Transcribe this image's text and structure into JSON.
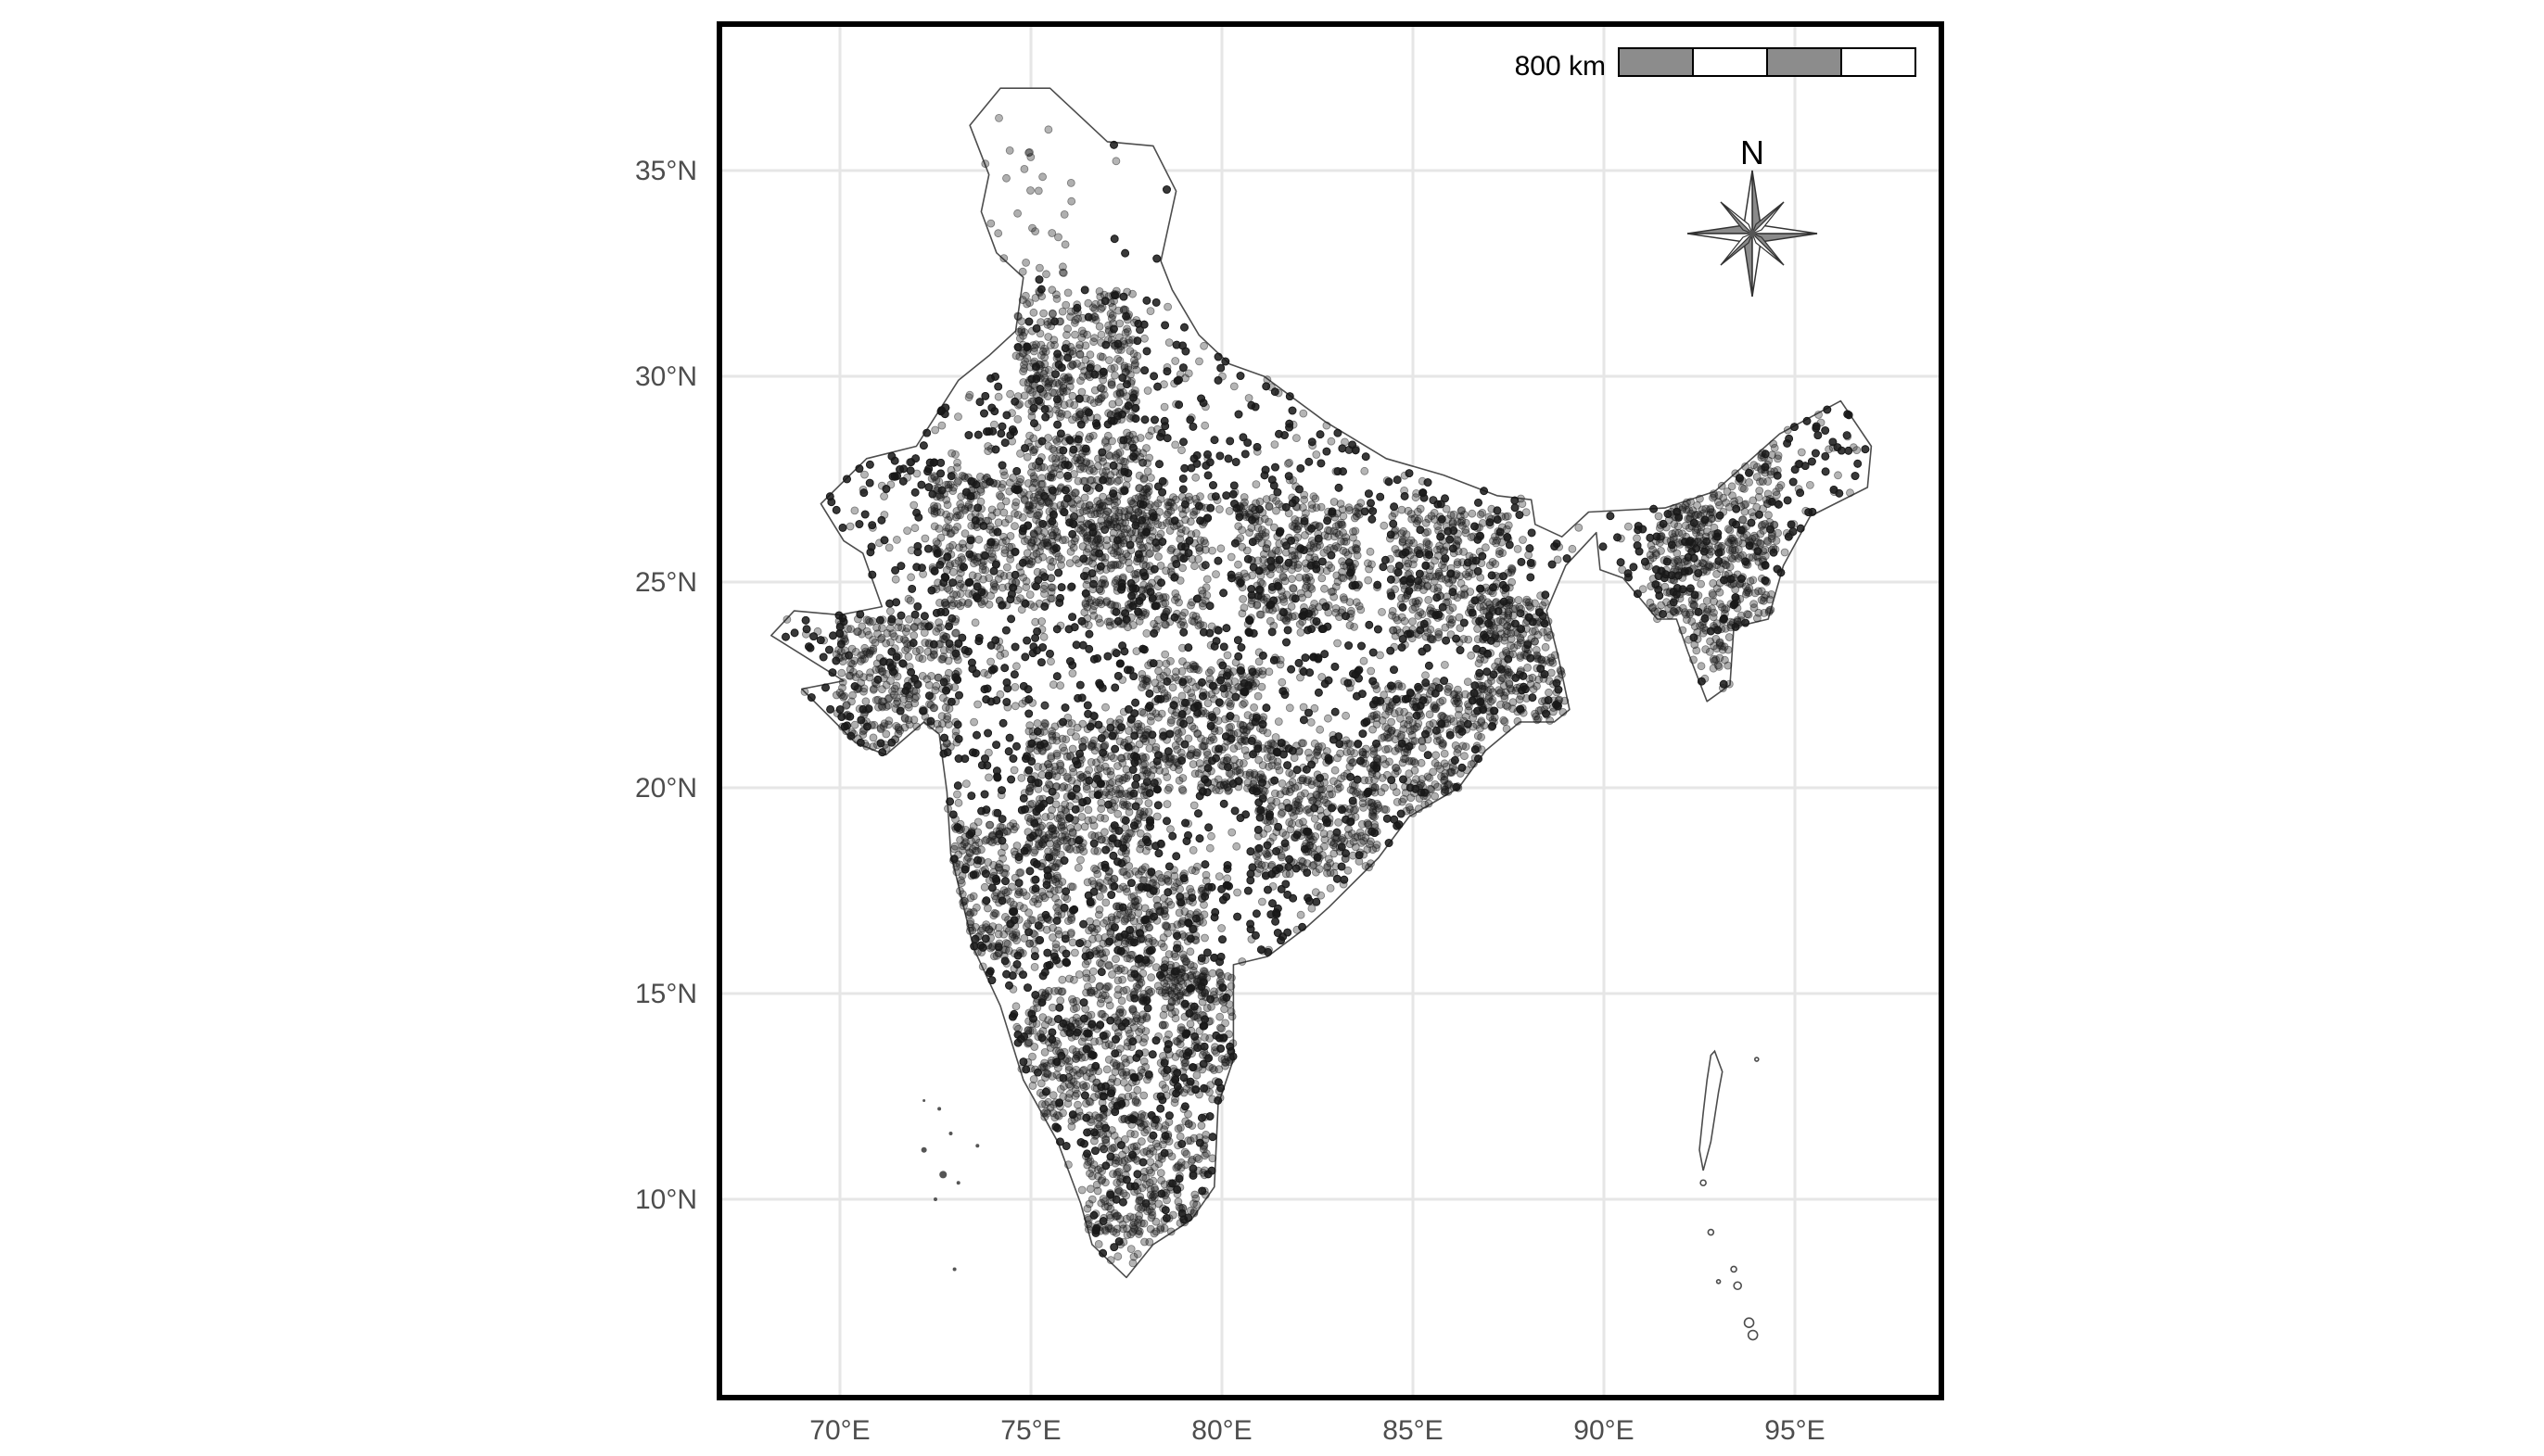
{
  "map": {
    "type": "point-distribution-map",
    "region": "India",
    "x_axis": {
      "ticks": [
        "70°E",
        "75°E",
        "80°E",
        "85°E",
        "90°E",
        "95°E"
      ],
      "tick_values": [
        70,
        75,
        80,
        85,
        90,
        95
      ],
      "range": [
        66.8,
        98.8
      ]
    },
    "y_axis": {
      "ticks": [
        "35°N",
        "30°N",
        "25°N",
        "20°N",
        "15°N",
        "10°N"
      ],
      "tick_values": [
        35,
        30,
        25,
        20,
        15,
        10
      ],
      "range": [
        5.4,
        38.6
      ]
    },
    "grid": true,
    "scale_bar": {
      "label": "800 km",
      "segments": 4,
      "colors": [
        "#8c8c8c",
        "#ffffff",
        "#8c8c8c",
        "#ffffff"
      ]
    },
    "north_arrow": {
      "label": "N"
    },
    "colors": {
      "points": "#1a1a1a",
      "outline": "#4d4d4d",
      "grid": "#e6e6e6",
      "frame": "#000000"
    },
    "outline_lonlat": [
      [
        74.2,
        37.0
      ],
      [
        75.5,
        37.0
      ],
      [
        77.0,
        35.7
      ],
      [
        78.2,
        35.6
      ],
      [
        78.8,
        34.5
      ],
      [
        78.4,
        32.8
      ],
      [
        78.7,
        32.1
      ],
      [
        79.4,
        31.0
      ],
      [
        80.2,
        30.3
      ],
      [
        81.1,
        30.0
      ],
      [
        82.7,
        28.9
      ],
      [
        84.3,
        28.0
      ],
      [
        85.8,
        27.6
      ],
      [
        87.2,
        27.1
      ],
      [
        88.1,
        27.0
      ],
      [
        88.2,
        26.4
      ],
      [
        88.9,
        26.1
      ],
      [
        89.6,
        26.7
      ],
      [
        91.6,
        26.8
      ],
      [
        92.9,
        27.2
      ],
      [
        94.6,
        28.6
      ],
      [
        96.2,
        29.4
      ],
      [
        97.0,
        28.3
      ],
      [
        96.9,
        27.3
      ],
      [
        95.4,
        26.6
      ],
      [
        94.7,
        25.4
      ],
      [
        94.3,
        24.1
      ],
      [
        93.4,
        23.9
      ],
      [
        93.3,
        22.5
      ],
      [
        92.7,
        22.1
      ],
      [
        92.2,
        23.3
      ],
      [
        91.9,
        24.1
      ],
      [
        91.4,
        24.1
      ],
      [
        90.5,
        25.1
      ],
      [
        89.9,
        25.3
      ],
      [
        89.8,
        26.2
      ],
      [
        89.0,
        25.4
      ],
      [
        88.5,
        24.3
      ],
      [
        88.8,
        23.2
      ],
      [
        89.1,
        21.9
      ],
      [
        88.7,
        21.6
      ],
      [
        87.8,
        21.6
      ],
      [
        86.9,
        20.9
      ],
      [
        86.2,
        20.0
      ],
      [
        84.9,
        19.3
      ],
      [
        84.1,
        18.3
      ],
      [
        82.8,
        17.1
      ],
      [
        82.2,
        16.6
      ],
      [
        81.2,
        15.9
      ],
      [
        80.3,
        15.7
      ],
      [
        80.3,
        13.4
      ],
      [
        79.9,
        12.3
      ],
      [
        79.8,
        10.3
      ],
      [
        79.2,
        9.5
      ],
      [
        78.2,
        8.9
      ],
      [
        77.5,
        8.1
      ],
      [
        76.6,
        8.9
      ],
      [
        76.3,
        9.9
      ],
      [
        75.7,
        11.4
      ],
      [
        74.8,
        12.9
      ],
      [
        74.2,
        14.7
      ],
      [
        73.5,
        16.1
      ],
      [
        72.9,
        18.4
      ],
      [
        72.8,
        19.9
      ],
      [
        72.6,
        21.3
      ],
      [
        72.2,
        21.6
      ],
      [
        71.2,
        20.8
      ],
      [
        70.4,
        21.1
      ],
      [
        69.0,
        22.4
      ],
      [
        70.1,
        22.6
      ],
      [
        68.2,
        23.7
      ],
      [
        68.8,
        24.3
      ],
      [
        70.0,
        24.2
      ],
      [
        71.1,
        24.4
      ],
      [
        70.6,
        25.7
      ],
      [
        70.1,
        26.0
      ],
      [
        69.5,
        26.9
      ],
      [
        70.7,
        28.0
      ],
      [
        72.0,
        28.3
      ],
      [
        73.1,
        29.9
      ],
      [
        73.9,
        30.5
      ],
      [
        74.6,
        31.1
      ],
      [
        74.8,
        32.4
      ],
      [
        74.1,
        33.0
      ],
      [
        73.7,
        34.0
      ],
      [
        73.9,
        34.9
      ],
      [
        73.4,
        36.1
      ]
    ],
    "cluster_centers_lonlat": [
      [
        74.5,
        34.0
      ],
      [
        76.2,
        30.5
      ],
      [
        76.5,
        27.0
      ],
      [
        74.0,
        26.0
      ],
      [
        78.0,
        25.5
      ],
      [
        82.0,
        25.5
      ],
      [
        86.0,
        25.2
      ],
      [
        88.3,
        23.0
      ],
      [
        85.5,
        21.0
      ],
      [
        82.5,
        19.5
      ],
      [
        79.5,
        21.5
      ],
      [
        76.5,
        20.0
      ],
      [
        74.5,
        17.5
      ],
      [
        78.0,
        16.5
      ],
      [
        76.5,
        13.5
      ],
      [
        78.0,
        10.5
      ],
      [
        80.0,
        14.0
      ],
      [
        93.0,
        27.3
      ],
      [
        92.8,
        24.5
      ],
      [
        71.5,
        22.5
      ]
    ]
  }
}
